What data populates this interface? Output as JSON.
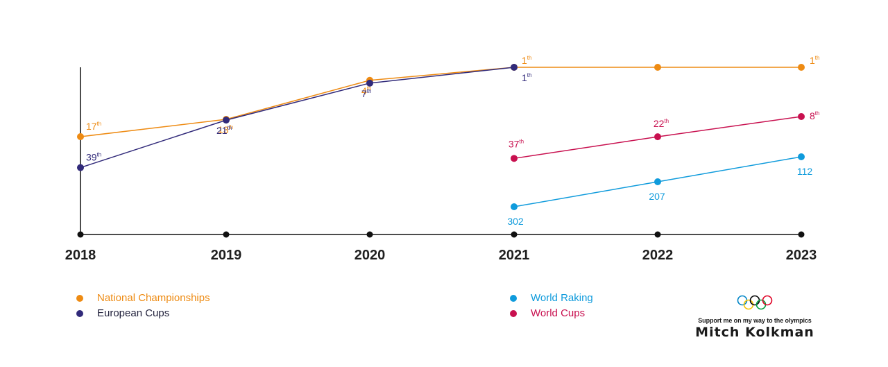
{
  "chart_data": {
    "type": "line",
    "x": [
      "2018",
      "2019",
      "2020",
      "2021",
      "2022",
      "2023"
    ],
    "series": [
      {
        "name": "National Championships",
        "color": "#ee8b13",
        "values": [
          17,
          13,
          4,
          1,
          1,
          1
        ],
        "labels": [
          "17",
          "13",
          "4",
          "1",
          null,
          "1"
        ]
      },
      {
        "name": "European Cups",
        "color": "#312a7a",
        "values": [
          39,
          21,
          7,
          1,
          null,
          null
        ],
        "labels": [
          "39",
          "21",
          "7",
          "1",
          null,
          null
        ]
      },
      {
        "name": "World Raking",
        "color": "#0f9bdc",
        "values": [
          null,
          null,
          null,
          302,
          207,
          112
        ],
        "labels": [
          null,
          null,
          null,
          "302",
          "207",
          "112"
        ]
      },
      {
        "name": "World Cups",
        "color": "#c8104f",
        "values": [
          null,
          null,
          null,
          37,
          22,
          8
        ],
        "labels": [
          null,
          null,
          null,
          "37",
          "22",
          "8"
        ]
      }
    ],
    "ordinal_suffix": "th",
    "legend_position": "bottom"
  },
  "branding": {
    "tagline": "Support me on my way to the olympics",
    "name": "Mitch Kolkman",
    "olympic_ring_colors": [
      "#0085c7",
      "#f4c300",
      "#000000",
      "#009f3d",
      "#df0024"
    ]
  }
}
